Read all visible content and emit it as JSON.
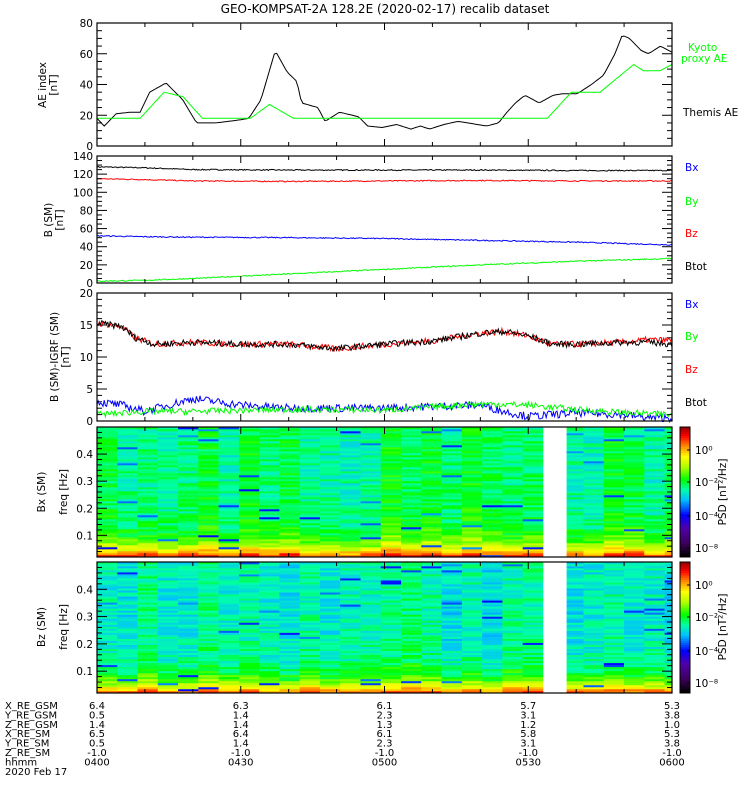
{
  "title": "GEO-KOMPSAT-2A 128.2E (2020-02-17) recalib dataset",
  "colors": {
    "black": "#000000",
    "red": "#ff0000",
    "green": "#00ff00",
    "blue": "#0000ff"
  },
  "time_axis": {
    "start_min": 0,
    "end_min": 120,
    "start_label": "0400"
  },
  "chart_data": [
    {
      "type": "line",
      "ylabel": "AE index",
      "yunit": "[nT]",
      "ylim": [
        0,
        80
      ],
      "yticks": [
        0,
        20,
        40,
        60,
        80
      ],
      "legend": [
        {
          "text": "Kyoto",
          "color": "#00ff00"
        },
        {
          "text": "proxy AE",
          "color": "#00ff00"
        },
        {
          "text": "Themis AE",
          "color": "#000000"
        }
      ],
      "series": [
        {
          "name": "Themis AE",
          "color": "#000000",
          "t": [
            0,
            1.5,
            4,
            7,
            9,
            11,
            14.4,
            17.9,
            20.8,
            24.8,
            29.8,
            31.7,
            34.2,
            37.2,
            39.7,
            41.7,
            42.7,
            46.1,
            47.6,
            50.6,
            54.6,
            56.5,
            59.5,
            62.5,
            65.5,
            67.5,
            69.4,
            72.4,
            75.4,
            79.4,
            81.3,
            83.8,
            85.3,
            87.3,
            89.3,
            92.3,
            95.2,
            97.2,
            100.2,
            103.2,
            105.7,
            108.1,
            109.6,
            111.1,
            113.6,
            115.1,
            117.6,
            120
          ],
          "v": [
            18,
            13,
            21,
            22,
            22,
            35,
            41,
            30,
            15,
            15,
            17,
            18,
            30,
            62,
            48,
            42,
            28,
            25,
            16,
            22,
            19,
            13,
            12,
            14,
            11,
            13,
            11,
            14,
            16,
            14,
            13,
            15,
            21,
            28,
            33,
            28,
            33,
            34,
            34,
            40,
            46,
            60,
            72,
            70,
            62,
            60,
            65,
            61
          ]
        },
        {
          "name": "Kyoto proxy AE",
          "color": "#00ff00",
          "t": [
            0,
            9,
            14,
            18,
            22,
            32,
            36,
            41,
            94,
            99,
            105,
            112,
            114,
            117.5,
            120
          ],
          "v": [
            18,
            18,
            35,
            32,
            18,
            18,
            27,
            18,
            18,
            35,
            35,
            53,
            49,
            49,
            53
          ]
        }
      ]
    },
    {
      "type": "line",
      "ylabel": "B (SM)",
      "yunit": "[nT]",
      "ylim": [
        0,
        140
      ],
      "yticks": [
        0,
        20,
        40,
        60,
        80,
        100,
        120,
        140
      ],
      "legend": [
        {
          "text": "Bx",
          "color": "#0000ff"
        },
        {
          "text": "By",
          "color": "#00ff00"
        },
        {
          "text": "Bz",
          "color": "#ff0000"
        },
        {
          "text": "Btot",
          "color": "#000000"
        }
      ],
      "series": [
        {
          "name": "Btot",
          "color": "#000000",
          "t": [
            0,
            10,
            20,
            40,
            60,
            80,
            100,
            120
          ],
          "v": [
            128,
            127,
            125,
            124.5,
            124.5,
            124.5,
            124,
            124
          ]
        },
        {
          "name": "Bz",
          "color": "#ff0000",
          "t": [
            0,
            10,
            20,
            40,
            60,
            80,
            100,
            120
          ],
          "v": [
            115,
            114,
            112.5,
            112,
            112.5,
            113,
            112.5,
            112.5
          ]
        },
        {
          "name": "Bx",
          "color": "#0000ff",
          "t": [
            0,
            10,
            20,
            40,
            60,
            80,
            100,
            120
          ],
          "v": [
            52,
            51,
            50.5,
            50,
            49,
            47,
            45,
            42
          ]
        },
        {
          "name": "By",
          "color": "#00ff00",
          "t": [
            0,
            10,
            20,
            40,
            60,
            80,
            100,
            120
          ],
          "v": [
            2,
            3,
            5,
            10,
            15,
            20,
            24,
            27
          ]
        }
      ]
    },
    {
      "type": "line",
      "ylabel": "B (SM)-IGRF (SM)",
      "yunit": "[nT]",
      "ylim": [
        0,
        20
      ],
      "yticks": [
        0,
        5,
        10,
        15,
        20
      ],
      "legend": [
        {
          "text": "Bx",
          "color": "#0000ff"
        },
        {
          "text": "By",
          "color": "#00ff00"
        },
        {
          "text": "Bz",
          "color": "#ff0000"
        },
        {
          "text": "Btot",
          "color": "#000000"
        }
      ],
      "series": [
        {
          "name": "Bz",
          "color": "#ff0000",
          "t": [
            0,
            5,
            8,
            12,
            20,
            30,
            40,
            50,
            60,
            70,
            80,
            85,
            90,
            95,
            100,
            110,
            115,
            120
          ],
          "v": [
            15.3,
            14.8,
            13,
            12,
            12.3,
            12,
            12,
            11.3,
            12,
            12.5,
            13.7,
            14,
            13.3,
            12,
            12,
            12.3,
            12.7,
            12.6
          ]
        },
        {
          "name": "Btot",
          "color": "#000000",
          "t": [
            0,
            5,
            8,
            12,
            20,
            30,
            40,
            50,
            60,
            70,
            80,
            85,
            90,
            95,
            100,
            110,
            115,
            120
          ],
          "v": [
            15.3,
            14.8,
            13,
            12,
            12.3,
            12,
            12,
            11.3,
            12,
            12.5,
            13.7,
            14,
            13.3,
            12,
            12,
            12.3,
            12.3,
            12
          ]
        },
        {
          "name": "Bx",
          "color": "#0000ff",
          "t": [
            0,
            5,
            10,
            15,
            20,
            25,
            30,
            40,
            50,
            60,
            70,
            80,
            85,
            90,
            95,
            100,
            110,
            115,
            120
          ],
          "v": [
            3,
            2.5,
            1.5,
            2.5,
            3.5,
            3,
            2.5,
            2,
            2,
            2,
            2.3,
            2.5,
            1.5,
            0.7,
            1,
            1.3,
            1,
            0.5,
            0.5
          ]
        },
        {
          "name": "By",
          "color": "#00ff00",
          "t": [
            0,
            10,
            20,
            40,
            60,
            80,
            90,
            100,
            110,
            120
          ],
          "v": [
            1,
            1.5,
            1.5,
            1.8,
            1.7,
            2.7,
            2.5,
            1.8,
            1.3,
            1
          ]
        }
      ]
    },
    {
      "type": "heatmap",
      "ylabel": "Bx (SM)",
      "yunit": "freq [Hz]",
      "ylim": [
        0.02,
        0.5
      ],
      "yticks": [
        0.1,
        0.2,
        0.3,
        0.4
      ],
      "zlabel": "PSD [nT²/Hz]",
      "zticks": [
        "10⁰",
        "10⁻²",
        "10⁻⁴",
        "10⁻⁸"
      ],
      "data_gap_min": [
        94,
        98
      ],
      "level_offset": 0.0
    },
    {
      "type": "heatmap",
      "ylabel": "Bz (SM)",
      "yunit": "freq [Hz]",
      "ylim": [
        0.02,
        0.5
      ],
      "yticks": [
        0.1,
        0.2,
        0.3,
        0.4
      ],
      "zlabel": "PSD [nT²/Hz]",
      "zticks": [
        "10⁰",
        "10⁻²",
        "10⁻⁴",
        "10⁻⁸"
      ],
      "data_gap_min": [
        94,
        98
      ],
      "level_offset": -0.04
    }
  ],
  "ephemeris": {
    "rows": [
      {
        "label": "X_RE_GSM",
        "values": [
          "6.4",
          "6.3",
          "6.1",
          "5.7",
          "5.3"
        ]
      },
      {
        "label": "Y_RE_GSM",
        "values": [
          "0.5",
          "1.4",
          "2.3",
          "3.1",
          "3.8"
        ]
      },
      {
        "label": "Z_RE_GSM",
        "values": [
          "1.4",
          "1.4",
          "1.3",
          "1.2",
          "1.0"
        ]
      },
      {
        "label": "X_RE_SM",
        "values": [
          "6.5",
          "6.4",
          "6.1",
          "5.8",
          "5.3"
        ]
      },
      {
        "label": "Y_RE_SM",
        "values": [
          "0.5",
          "1.4",
          "2.3",
          "3.1",
          "3.8"
        ]
      },
      {
        "label": "Z_RE_SM",
        "values": [
          "-1.0",
          "-1.0",
          "-1.0",
          "-1.0",
          "-1.0"
        ]
      },
      {
        "label": "hhmm",
        "values": [
          "0400",
          "0430",
          "0500",
          "0530",
          "0600"
        ]
      }
    ],
    "date": "2020 Feb 17"
  }
}
